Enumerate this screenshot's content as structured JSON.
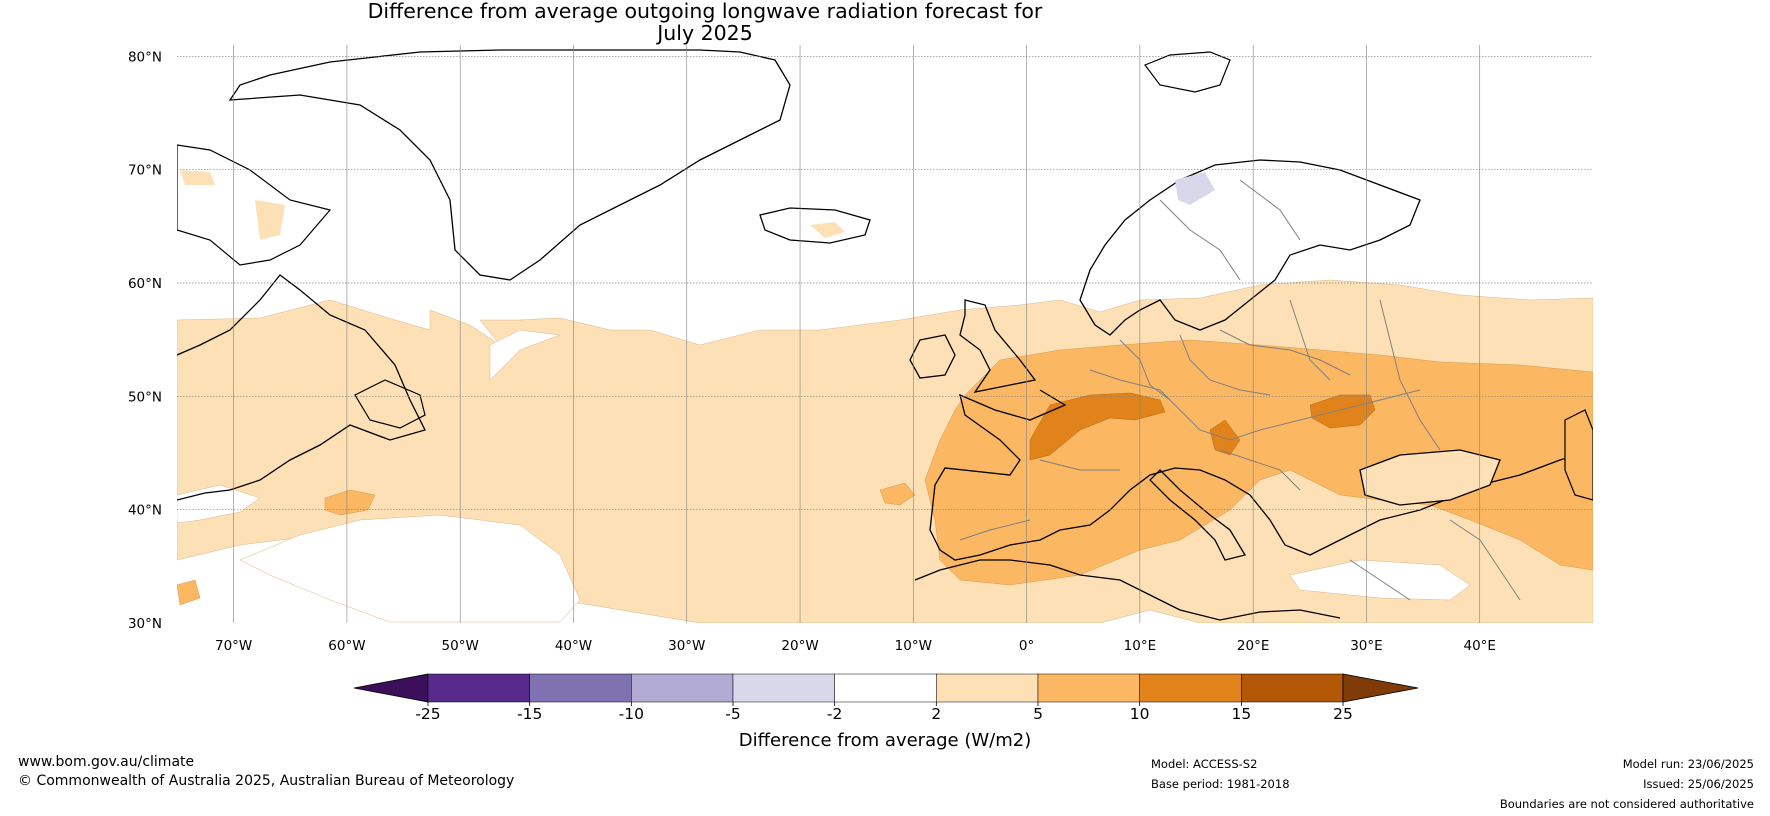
{
  "title": {
    "line1": "Difference from average outgoing longwave radiation forecast for",
    "line2": "July 2025"
  },
  "map": {
    "lat_labels": [
      "80°N",
      "70°N",
      "60°N",
      "50°N",
      "40°N",
      "30°N"
    ],
    "lon_labels": [
      "70°W",
      "60°W",
      "50°W",
      "40°W",
      "30°W",
      "20°W",
      "10°W",
      "0°",
      "10°E",
      "20°E",
      "30°E",
      "40°E"
    ],
    "extent": {
      "lon_min": -75,
      "lon_max": 50,
      "lat_min": 30,
      "lat_max": 81
    },
    "colors": {
      "land_outline": "#000000",
      "borders": "#808080",
      "gridlines": "#808080"
    }
  },
  "colorbar": {
    "title": "Difference from average (W/m2)",
    "tick_labels": [
      "-25",
      "-15",
      "-10",
      "-5",
      "-2",
      "2",
      "5",
      "10",
      "15",
      "25"
    ],
    "colors": [
      "#3b0f5a",
      "#572a8c",
      "#7e73b0",
      "#b1aad3",
      "#d9d8ea",
      "#ffffff",
      "#fde0b5",
      "#fbb761",
      "#e0831a",
      "#b35806",
      "#7f3b08"
    ]
  },
  "footer": {
    "website": "www.bom.gov.au/climate",
    "copyright": "© Commonwealth of Australia 2025, Australian Bureau of Meteorology",
    "model": "Model: ACCESS-S2",
    "base_period": "Base period: 1981-2018",
    "model_run": "Model run: 23/06/2025",
    "issued": "Issued: 25/06/2025",
    "disclaimer": "Boundaries are not considered authoritative"
  }
}
